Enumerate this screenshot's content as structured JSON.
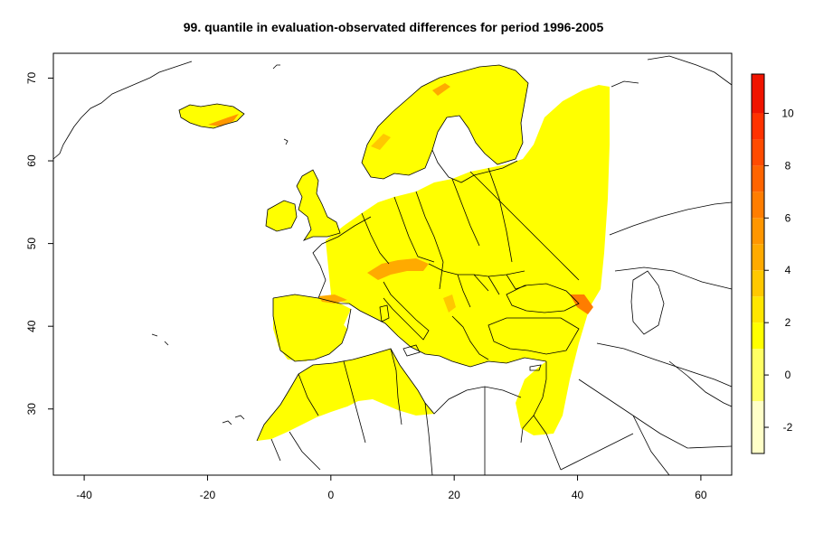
{
  "title": "99. quantile in evaluation-observated differences for period 1996-2005",
  "x_ticks": [
    "-40",
    "-20",
    "0",
    "20",
    "40",
    "60"
  ],
  "y_ticks": [
    "30",
    "40",
    "50",
    "60",
    "70"
  ],
  "colorbar": {
    "min": -3,
    "max": 11.5,
    "tick_values": [
      -2,
      0,
      2,
      4,
      6,
      8,
      10
    ],
    "tick_labels": [
      "-2",
      "0",
      "2",
      "4",
      "6",
      "8",
      "10"
    ],
    "bands": [
      {
        "from": -3,
        "to": -1,
        "color": "#ffffc8"
      },
      {
        "from": -1,
        "to": 1,
        "color": "#ffff64"
      },
      {
        "from": 1,
        "to": 2,
        "color": "#ffff00"
      },
      {
        "from": 2,
        "to": 3,
        "color": "#ffe600"
      },
      {
        "from": 3,
        "to": 4,
        "color": "#ffc800"
      },
      {
        "from": 4,
        "to": 5,
        "color": "#ffaa00"
      },
      {
        "from": 5,
        "to": 6,
        "color": "#ff9600"
      },
      {
        "from": 6,
        "to": 7,
        "color": "#ff7d00"
      },
      {
        "from": 7,
        "to": 8,
        "color": "#ff6400"
      },
      {
        "from": 8,
        "to": 9,
        "color": "#ff4b00"
      },
      {
        "from": 9,
        "to": 10,
        "color": "#ff3200"
      },
      {
        "from": 10,
        "to": 11.5,
        "color": "#f01400"
      }
    ]
  },
  "map": {
    "x_range": [
      -45,
      65
    ],
    "y_range": [
      22,
      73
    ],
    "base_color": "#ffff00",
    "hotspot_color": "#ff9600"
  }
}
